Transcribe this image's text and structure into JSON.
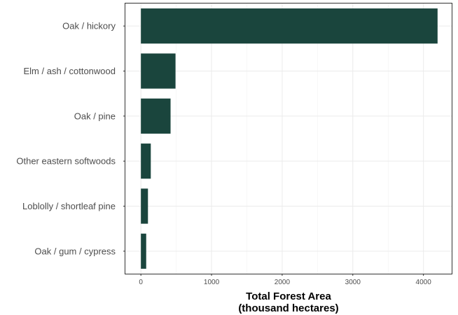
{
  "chart_data": {
    "type": "bar",
    "orientation": "horizontal",
    "categories": [
      "Oak / hickory",
      "Elm / ash / cottonwood",
      "Oak / pine",
      "Other eastern softwoods",
      "Loblolly / shortleaf pine",
      "Oak / gum / cypress"
    ],
    "values": [
      4200,
      490,
      420,
      140,
      100,
      75
    ],
    "xlabel_line1": "Total Forest Area",
    "xlabel_line2": "(thousand hectares)",
    "ylabel": "",
    "title": "",
    "xlim": [
      -220,
      4400
    ],
    "xticks": [
      0,
      1000,
      2000,
      3000,
      4000
    ],
    "grid": true,
    "bar_color": "#1a453d"
  }
}
